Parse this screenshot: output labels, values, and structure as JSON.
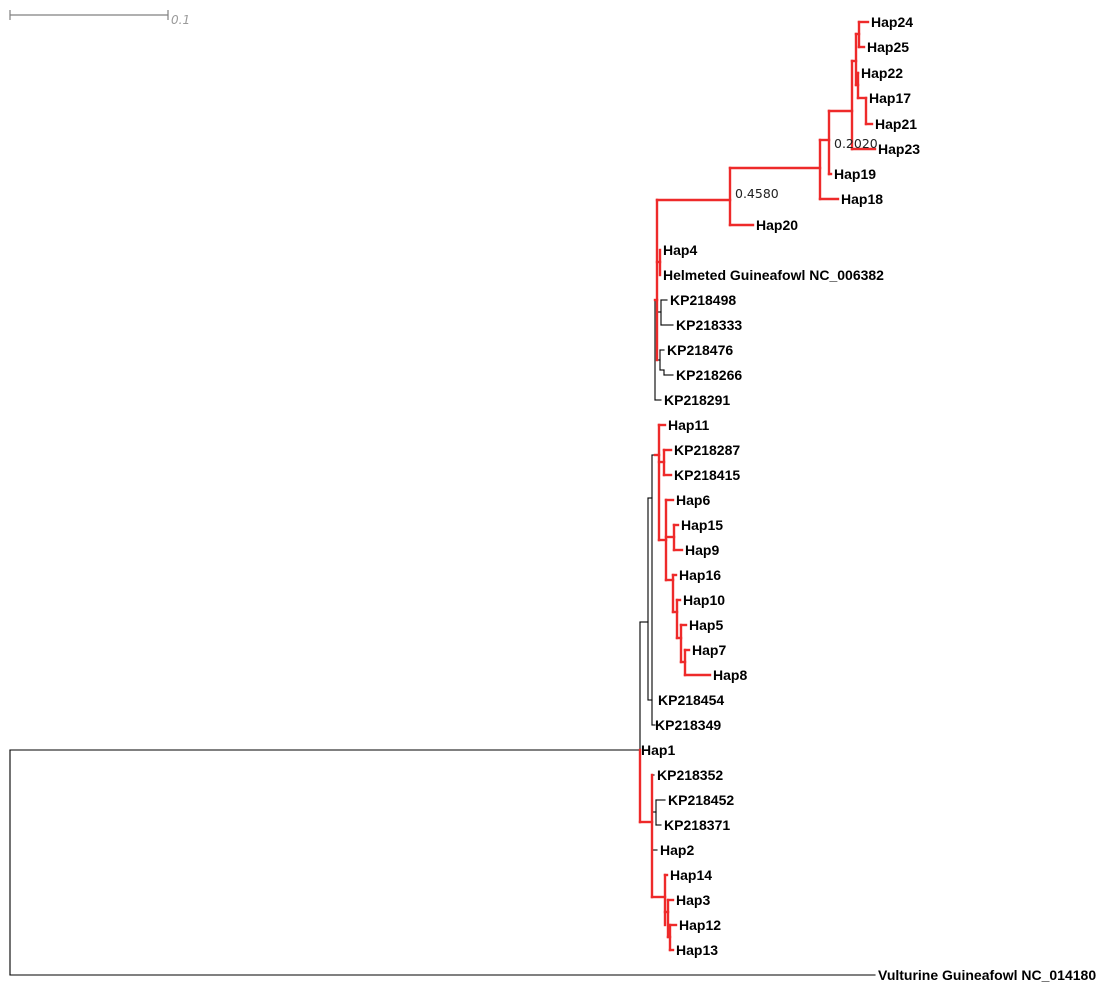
{
  "scale_bar": {
    "label": "0.1"
  },
  "colors": {
    "highlight": "#ee2a2a",
    "default": "#000000",
    "scale": "#808080"
  },
  "support_values": [
    "0.4580",
    "0.2020"
  ],
  "taxa": [
    "Hap24",
    "Hap25",
    "Hap22",
    "Hap17",
    "Hap21",
    "Hap23",
    "Hap19",
    "Hap18",
    "Hap20",
    "Hap4",
    "Helmeted Guineafowl NC_006382",
    "KP218498",
    "KP218333",
    "KP218476",
    "KP218266",
    "KP218291",
    "Hap11",
    "KP218287",
    "KP218415",
    "Hap6",
    "Hap15",
    "Hap9",
    "Hap16",
    "Hap10",
    "Hap5",
    "Hap7",
    "Hap8",
    "KP218454",
    "KP218349",
    "Hap1",
    "KP218352",
    "KP218452",
    "KP218371",
    "Hap2",
    "Hap14",
    "Hap3",
    "Hap12",
    "Hap13",
    "Vulturine Guineafowl NC_014180"
  ]
}
